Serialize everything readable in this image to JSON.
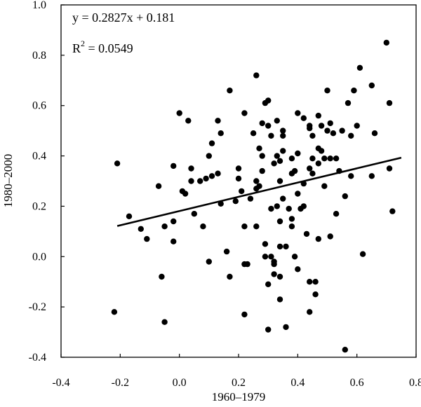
{
  "chart_data": {
    "type": "scatter",
    "title": "",
    "xlabel": "1960–1979",
    "ylabel": "1980–2000",
    "xlim": [
      -0.4,
      0.8
    ],
    "ylim": [
      -0.4,
      1.0
    ],
    "xticks": [
      "-0.4",
      "-0.2",
      "0.0",
      "0.2",
      "0.4",
      "0.6",
      "0.8"
    ],
    "yticks": [
      "-0.4",
      "-0.2",
      "0.0",
      "0.2",
      "0.4",
      "0.6",
      "0.8",
      "1.0"
    ],
    "grid": false,
    "annotations": {
      "equation": "y = 0.2827x + 0.181",
      "r2_prefix": "R",
      "r2_exponent": "2",
      "r2_suffix": " = 0.0549"
    },
    "trendline": {
      "slope": 0.2827,
      "intercept": 0.181,
      "x_range": [
        -0.21,
        0.75
      ]
    },
    "points": [
      [
        -0.21,
        0.37
      ],
      [
        -0.22,
        -0.22
      ],
      [
        -0.17,
        0.16
      ],
      [
        -0.13,
        0.11
      ],
      [
        -0.11,
        0.07
      ],
      [
        -0.07,
        0.28
      ],
      [
        -0.06,
        -0.08
      ],
      [
        -0.05,
        0.12
      ],
      [
        -0.05,
        -0.26
      ],
      [
        -0.02,
        0.36
      ],
      [
        -0.02,
        0.14
      ],
      [
        -0.02,
        0.06
      ],
      [
        0.0,
        0.57
      ],
      [
        0.01,
        0.26
      ],
      [
        0.02,
        0.25
      ],
      [
        0.03,
        0.54
      ],
      [
        0.04,
        0.35
      ],
      [
        0.04,
        0.3
      ],
      [
        0.05,
        0.17
      ],
      [
        0.07,
        0.3
      ],
      [
        0.08,
        0.12
      ],
      [
        0.09,
        0.31
      ],
      [
        0.1,
        0.4
      ],
      [
        0.1,
        -0.02
      ],
      [
        0.11,
        0.45
      ],
      [
        0.11,
        0.32
      ],
      [
        0.13,
        0.54
      ],
      [
        0.13,
        0.33
      ],
      [
        0.14,
        0.49
      ],
      [
        0.14,
        0.21
      ],
      [
        0.16,
        0.02
      ],
      [
        0.17,
        0.66
      ],
      [
        0.17,
        -0.08
      ],
      [
        0.19,
        0.22
      ],
      [
        0.2,
        0.35
      ],
      [
        0.2,
        0.31
      ],
      [
        0.21,
        0.26
      ],
      [
        0.22,
        0.57
      ],
      [
        0.22,
        0.12
      ],
      [
        0.22,
        -0.03
      ],
      [
        0.22,
        -0.23
      ],
      [
        0.23,
        -0.03
      ],
      [
        0.24,
        0.23
      ],
      [
        0.25,
        0.49
      ],
      [
        0.26,
        0.72
      ],
      [
        0.26,
        0.3
      ],
      [
        0.26,
        0.27
      ],
      [
        0.26,
        0.12
      ],
      [
        0.27,
        0.28
      ],
      [
        0.27,
        0.43
      ],
      [
        0.28,
        0.4
      ],
      [
        0.28,
        0.34
      ],
      [
        0.28,
        0.53
      ],
      [
        0.29,
        0.61
      ],
      [
        0.29,
        0.05
      ],
      [
        0.29,
        0.0
      ],
      [
        0.3,
        0.52
      ],
      [
        0.3,
        0.62
      ],
      [
        0.3,
        -0.11
      ],
      [
        0.3,
        -0.29
      ],
      [
        0.31,
        0.48
      ],
      [
        0.31,
        0.19
      ],
      [
        0.31,
        0.0
      ],
      [
        0.32,
        0.37
      ],
      [
        0.32,
        -0.02
      ],
      [
        0.32,
        -0.03
      ],
      [
        0.32,
        -0.07
      ],
      [
        0.33,
        0.54
      ],
      [
        0.33,
        0.4
      ],
      [
        0.33,
        0.2
      ],
      [
        0.34,
        0.38
      ],
      [
        0.34,
        0.3
      ],
      [
        0.34,
        0.14
      ],
      [
        0.34,
        0.04
      ],
      [
        0.34,
        -0.08
      ],
      [
        0.34,
        -0.17
      ],
      [
        0.35,
        0.5
      ],
      [
        0.35,
        0.48
      ],
      [
        0.35,
        0.42
      ],
      [
        0.35,
        0.23
      ],
      [
        0.36,
        0.04
      ],
      [
        0.36,
        -0.28
      ],
      [
        0.37,
        0.19
      ],
      [
        0.38,
        0.15
      ],
      [
        0.38,
        0.12
      ],
      [
        0.38,
        0.33
      ],
      [
        0.38,
        0.39
      ],
      [
        0.39,
        0.34
      ],
      [
        0.39,
        0.0
      ],
      [
        0.4,
        0.57
      ],
      [
        0.4,
        0.41
      ],
      [
        0.4,
        0.25
      ],
      [
        0.4,
        -0.05
      ],
      [
        0.41,
        0.19
      ],
      [
        0.42,
        0.55
      ],
      [
        0.42,
        0.29
      ],
      [
        0.42,
        0.2
      ],
      [
        0.43,
        0.09
      ],
      [
        0.44,
        0.52
      ],
      [
        0.44,
        0.51
      ],
      [
        0.44,
        0.35
      ],
      [
        0.44,
        -0.1
      ],
      [
        0.44,
        -0.22
      ],
      [
        0.45,
        0.48
      ],
      [
        0.45,
        0.39
      ],
      [
        0.45,
        0.33
      ],
      [
        0.46,
        -0.1
      ],
      [
        0.46,
        -0.15
      ],
      [
        0.47,
        0.56
      ],
      [
        0.47,
        0.43
      ],
      [
        0.47,
        0.37
      ],
      [
        0.47,
        0.07
      ],
      [
        0.48,
        0.52
      ],
      [
        0.48,
        0.42
      ],
      [
        0.49,
        0.39
      ],
      [
        0.49,
        0.28
      ],
      [
        0.5,
        0.66
      ],
      [
        0.5,
        0.5
      ],
      [
        0.51,
        0.53
      ],
      [
        0.51,
        0.39
      ],
      [
        0.51,
        0.08
      ],
      [
        0.52,
        0.49
      ],
      [
        0.53,
        0.39
      ],
      [
        0.53,
        0.17
      ],
      [
        0.54,
        0.34
      ],
      [
        0.55,
        0.5
      ],
      [
        0.56,
        0.24
      ],
      [
        0.56,
        -0.37
      ],
      [
        0.57,
        0.61
      ],
      [
        0.58,
        0.48
      ],
      [
        0.58,
        0.32
      ],
      [
        0.59,
        0.66
      ],
      [
        0.6,
        0.52
      ],
      [
        0.61,
        0.75
      ],
      [
        0.62,
        0.01
      ],
      [
        0.65,
        0.68
      ],
      [
        0.65,
        0.32
      ],
      [
        0.66,
        0.49
      ],
      [
        0.7,
        0.85
      ],
      [
        0.71,
        0.61
      ],
      [
        0.71,
        0.35
      ],
      [
        0.72,
        0.18
      ]
    ]
  }
}
